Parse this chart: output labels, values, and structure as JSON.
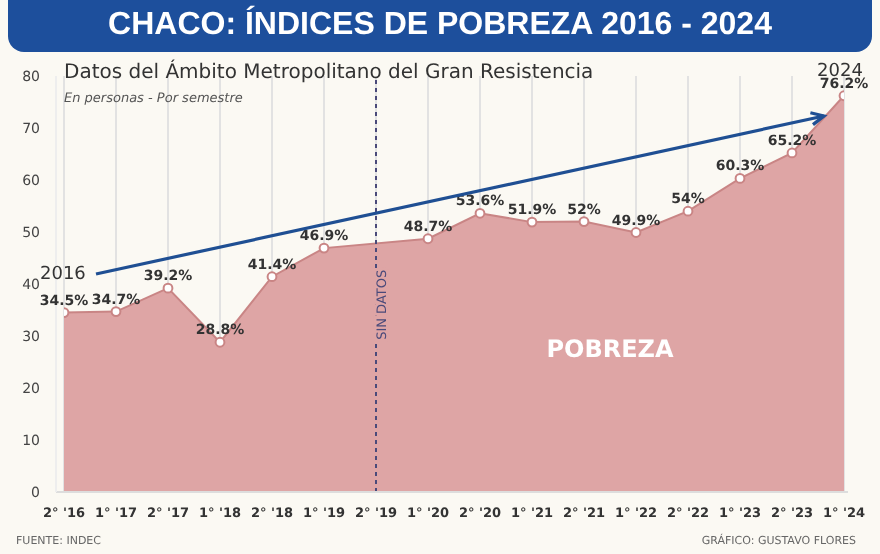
{
  "chart_data": {
    "type": "area",
    "title": "CHACO: ÍNDICES DE POBREZA 2016 - 2024",
    "subtitle": "Datos del Ámbito Metropolitano del Gran Resistencia",
    "annotations": [
      "En personas - Por semestre",
      "FUENTE: INDEC",
      "GRÁFICO: GUSTAVO FLORES",
      "2016",
      "2024"
    ],
    "categories": [
      "2° '16",
      "1° '17",
      "2° '17",
      "1° '18",
      "2° '18",
      "1° '19",
      "2° '19",
      "1° '20",
      "2° '20",
      "1° '21",
      "2° '21",
      "1° '22",
      "2° '22",
      "1° '23",
      "2° '23",
      "1° '24"
    ],
    "series": [
      {
        "name": "POBREZA",
        "color": "#dea5a5",
        "values": [
          34.5,
          34.7,
          39.2,
          28.8,
          41.4,
          46.9,
          null,
          48.7,
          53.6,
          51.9,
          52,
          49.9,
          54,
          60.3,
          65.2,
          76.2
        ],
        "value_labels": [
          "34.5%",
          "34.7%",
          "39.2%",
          "28.8%",
          "41.4%",
          "46.9%",
          null,
          "48.7%",
          "53.6%",
          "51.9%",
          "52%",
          "49.9%",
          "54%",
          "60.3%",
          "65.2%",
          "76.2%"
        ]
      }
    ],
    "ref_lines": [
      {
        "axis": "x",
        "value": "2° '19",
        "label": "SIN DATOS",
        "color": "#4a4a7a",
        "line_style": "dotted"
      }
    ],
    "ylim": [
      0,
      80
    ],
    "yticks": [
      0,
      10,
      20,
      30,
      40,
      50,
      60,
      70,
      80
    ],
    "grid": "x",
    "marker": "circle"
  }
}
